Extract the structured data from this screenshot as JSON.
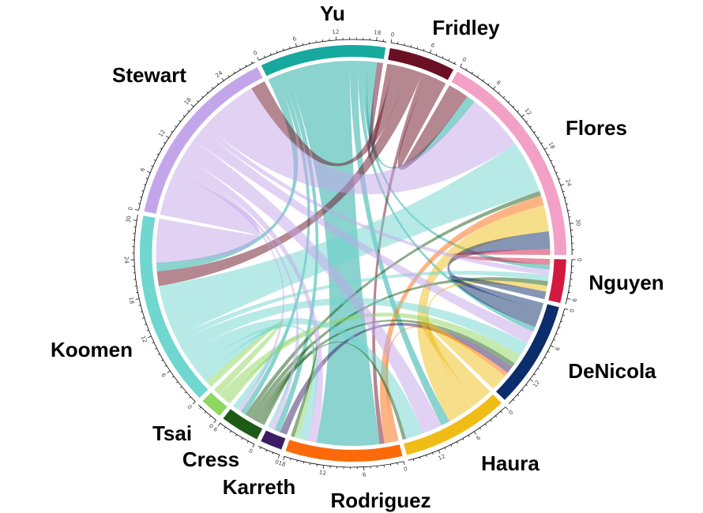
{
  "chart_data": {
    "type": "chord",
    "title": "",
    "start_degree": -25.5,
    "gap_degree": 1.2,
    "chord_opacity": 0.5,
    "axis": {
      "major_tick_interval": 6,
      "minor_tick_interval": 1
    },
    "radii": {
      "band_outer": 264,
      "band_inner": 249,
      "chord": 244,
      "axis": 271
    },
    "sectors": [
      {
        "name": "Yu",
        "color": "#17a89e"
      },
      {
        "name": "Fridley",
        "color": "#6b1024"
      },
      {
        "name": "Flores",
        "color": "#f3a0c6"
      },
      {
        "name": "Nguyen",
        "color": "#d21a3f"
      },
      {
        "name": "DeNicola",
        "color": "#0c2d6b"
      },
      {
        "name": "Haura",
        "color": "#f0bd17"
      },
      {
        "name": "Rodriguez",
        "color": "#fb6a0a"
      },
      {
        "name": "Karreth",
        "color": "#3a1d62"
      },
      {
        "name": "Cress",
        "color": "#1c5a16"
      },
      {
        "name": "Tsai",
        "color": "#8ed65e"
      },
      {
        "name": "Koomen",
        "color": "#6fd6d0"
      },
      {
        "name": "Stewart",
        "color": "#c3a6ea"
      }
    ],
    "links": [
      {
        "from": "Yu",
        "to": "Rodriguez",
        "value": 10.5
      },
      {
        "from": "Yu",
        "to": "Flores",
        "value": 1.5
      },
      {
        "from": "Yu",
        "to": "Koomen",
        "value": 1.5
      },
      {
        "from": "Yu",
        "to": "DeNicola",
        "value": 0.8
      },
      {
        "from": "Yu",
        "to": "Haura",
        "value": 1.5
      },
      {
        "from": "Yu",
        "to": "Nguyen",
        "value": 0.8
      },
      {
        "from": "Yu",
        "to": "Cress",
        "value": 0.9
      },
      {
        "from": "Fridley",
        "to": "Yu",
        "value": 1.0
      },
      {
        "from": "Yu",
        "to": "Karreth",
        "value": 1.0
      },
      {
        "from": "Fridley",
        "to": "Stewart",
        "value": 2.5
      },
      {
        "from": "Fridley",
        "to": "Koomen",
        "value": 2.5
      },
      {
        "from": "Fridley",
        "to": "Rodriguez",
        "value": 0.8
      },
      {
        "from": "Fridley",
        "to": "Flores",
        "value": 3.5
      },
      {
        "from": "Stewart",
        "to": "Flores",
        "value": 9.8
      },
      {
        "from": "Koomen",
        "to": "Flores",
        "value": 9.0
      },
      {
        "from": "Cress",
        "to": "Flores",
        "value": 0.8
      },
      {
        "from": "Rodriguez",
        "to": "Flores",
        "value": 1.7
      },
      {
        "from": "Haura",
        "to": "Flores",
        "value": 4.5
      },
      {
        "from": "DeNicola",
        "to": "Flores",
        "value": 3.0
      },
      {
        "from": "Nguyen",
        "to": "Flores",
        "value": 1.0
      },
      {
        "from": "Stewart",
        "to": "Nguyen",
        "value": 1.0
      },
      {
        "from": "Koomen",
        "to": "Nguyen",
        "value": 1.0
      },
      {
        "from": "Cress",
        "to": "Nguyen",
        "value": 0.8
      },
      {
        "from": "Haura",
        "to": "Nguyen",
        "value": 1.0
      },
      {
        "from": "DeNicola",
        "to": "Nguyen",
        "value": 1.3
      },
      {
        "from": "Stewart",
        "to": "DeNicola",
        "value": 2.2
      },
      {
        "from": "Koomen",
        "to": "DeNicola",
        "value": 2.4
      },
      {
        "from": "Tsai",
        "to": "DeNicola",
        "value": 1.6
      },
      {
        "from": "Cress",
        "to": "DeNicola",
        "value": 0.8
      },
      {
        "from": "Karreth",
        "to": "DeNicola",
        "value": 1.2
      },
      {
        "from": "Rodriguez",
        "to": "DeNicola",
        "value": 0.7
      },
      {
        "from": "Haura",
        "to": "DeNicola",
        "value": 2.9
      },
      {
        "from": "Stewart",
        "to": "Haura",
        "value": 3.4
      },
      {
        "from": "Koomen",
        "to": "Haura",
        "value": 2.9
      },
      {
        "from": "Cress",
        "to": "Haura",
        "value": 0.6
      },
      {
        "from": "Stewart",
        "to": "Rodriguez",
        "value": 1.6
      },
      {
        "from": "Koomen",
        "to": "Rodriguez",
        "value": 1.5
      },
      {
        "from": "Tsai",
        "to": "Rodriguez",
        "value": 0.7
      },
      {
        "from": "Cress",
        "to": "Rodriguez",
        "value": 0.6
      },
      {
        "from": "Stewart",
        "to": "Koomen",
        "value": 7.5
      },
      {
        "from": "Stewart",
        "to": "Cress",
        "value": 0.6
      },
      {
        "from": "Stewart",
        "to": "Karreth",
        "value": 0.8
      },
      {
        "from": "Tsai",
        "to": "Koomen",
        "value": 1.2
      },
      {
        "from": "Koomen",
        "to": "Cress",
        "value": 1.0
      },
      {
        "from": "Koomen",
        "to": "Karreth",
        "value": 0.4
      }
    ],
    "legend": "none",
    "grid": false
  }
}
